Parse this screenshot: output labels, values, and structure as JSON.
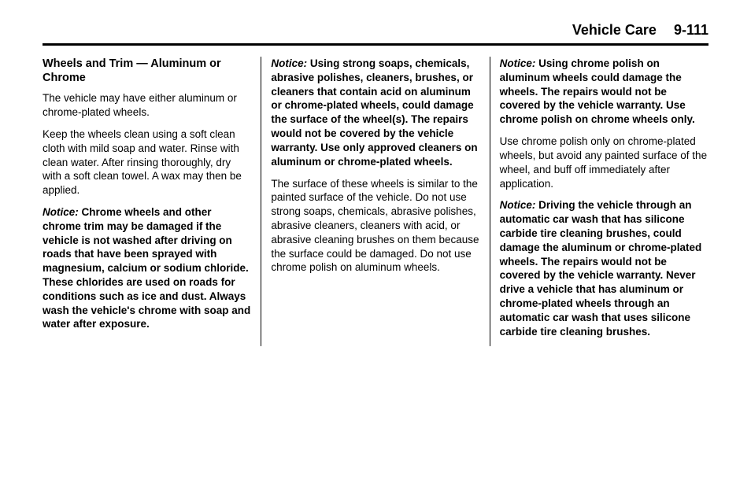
{
  "header": {
    "section": "Vehicle Care",
    "page": "9-111"
  },
  "col1": {
    "subhead": "Wheels and Trim — Aluminum or Chrome",
    "p1": "The vehicle may have either aluminum or chrome-plated wheels.",
    "p2": "Keep the wheels clean using a soft clean cloth with mild soap and water. Rinse with clean water. After rinsing thoroughly, dry with a soft clean towel. A wax may then be applied.",
    "notice1_label": "Notice:",
    "notice1_body": " Chrome wheels and other chrome trim may be damaged if the vehicle is not washed after driving on roads that have been sprayed with magnesium, calcium or sodium chloride. These chlorides are used on roads for conditions such as ice and dust. Always wash the vehicle's chrome with soap and water after exposure."
  },
  "col2": {
    "notice1_label": "Notice:",
    "notice1_body": " Using strong soaps, chemicals, abrasive polishes, cleaners, brushes, or cleaners that contain acid on aluminum or chrome-plated wheels, could damage the surface of the wheel(s). The repairs would not be covered by the vehicle warranty. Use only approved cleaners on aluminum or chrome-plated wheels.",
    "p2": "The surface of these wheels is similar to the painted surface of the vehicle. Do not use strong soaps, chemicals, abrasive polishes, abrasive cleaners, cleaners with acid, or abrasive cleaning brushes on them because the surface could be damaged. Do not use chrome polish on aluminum wheels."
  },
  "col3": {
    "notice1_label": "Notice:",
    "notice1_body": " Using chrome polish on aluminum wheels could damage the wheels. The repairs would not be covered by the vehicle warranty. Use chrome polish on chrome wheels only.",
    "p2": "Use chrome polish only on chrome-plated wheels, but avoid any painted surface of the wheel, and buff off immediately after application.",
    "notice2_label": "Notice:",
    "notice2_body": " Driving the vehicle through an automatic car wash that has silicone carbide tire cleaning brushes, could damage the aluminum or chrome-plated wheels. The repairs would not be covered by the vehicle warranty. Never drive a vehicle that has aluminum or chrome-plated wheels through an automatic car wash that uses silicone carbide tire cleaning brushes."
  }
}
